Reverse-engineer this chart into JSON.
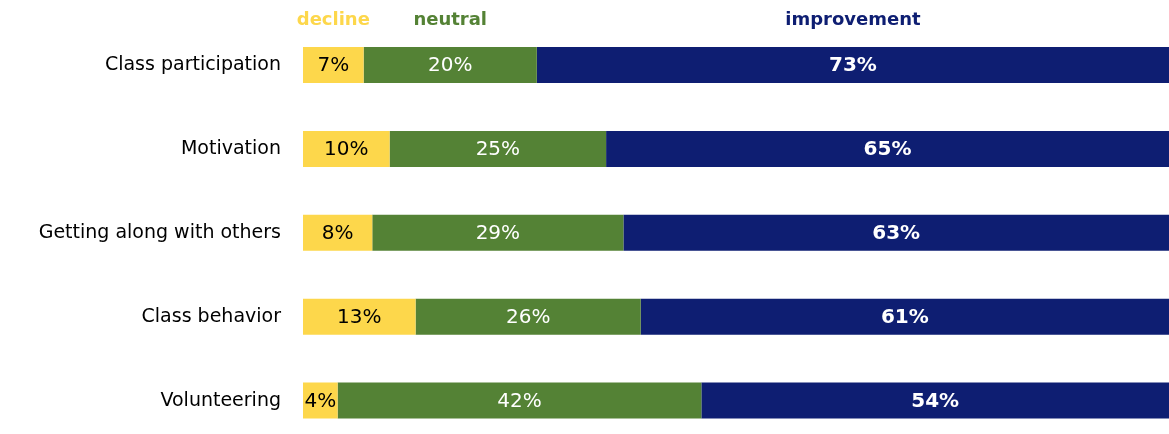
{
  "chart_data": {
    "type": "bar",
    "orientation": "horizontal",
    "stacked": true,
    "categories": [
      "Class participation",
      "Motivation",
      "Getting along with others",
      "Class behavior",
      "Volunteering"
    ],
    "series": [
      {
        "name": "decline",
        "color": "#fdd74b",
        "values": [
          7,
          10,
          8,
          13,
          4
        ],
        "value_labels": [
          "7%",
          "10%",
          "8%",
          "13%",
          "4%"
        ]
      },
      {
        "name": "neutral",
        "color": "#548235",
        "values": [
          20,
          25,
          29,
          26,
          42
        ],
        "value_labels": [
          "20%",
          "25%",
          "29%",
          "26%",
          "42%"
        ]
      },
      {
        "name": "improvement",
        "color": "#0e1e72",
        "values": [
          73,
          65,
          63,
          61,
          54
        ],
        "value_labels": [
          "73%",
          "65%",
          "63%",
          "61%",
          "54%"
        ]
      }
    ],
    "xlim": [
      0,
      100
    ],
    "tick_labels": "y",
    "legend": "top"
  }
}
